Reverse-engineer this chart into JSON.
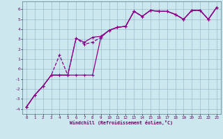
{
  "xlabel": "Windchill (Refroidissement éolien,°C)",
  "bg_color": "#cce8ee",
  "line_color": "#880088",
  "grid_color": "#99bbcc",
  "xlim": [
    -0.5,
    23.5
  ],
  "ylim": [
    -4.5,
    6.8
  ],
  "x_ticks": [
    0,
    1,
    2,
    3,
    4,
    5,
    6,
    7,
    8,
    9,
    10,
    11,
    12,
    13,
    14,
    15,
    16,
    17,
    18,
    19,
    20,
    21,
    22,
    23
  ],
  "y_ticks": [
    -4,
    -3,
    -2,
    -1,
    0,
    1,
    2,
    3,
    4,
    5,
    6
  ],
  "series1_x": [
    0,
    1,
    2,
    3,
    4,
    5,
    6,
    7,
    8,
    9,
    10,
    11,
    12,
    13,
    14,
    15,
    16,
    17,
    18,
    19,
    20,
    21,
    22,
    23
  ],
  "series1_y": [
    -3.8,
    -2.6,
    -1.7,
    -0.6,
    -0.6,
    -0.6,
    -0.6,
    -0.6,
    -0.6,
    3.2,
    3.9,
    4.2,
    4.3,
    5.8,
    5.3,
    5.9,
    5.8,
    5.8,
    5.5,
    5.0,
    5.9,
    5.9,
    5.0,
    6.2
  ],
  "series2_x": [
    0,
    1,
    2,
    3,
    4,
    5,
    6,
    7,
    8,
    9,
    10,
    11,
    12,
    13,
    14,
    15,
    16,
    17,
    18,
    19,
    20,
    21,
    22,
    23
  ],
  "series2_y": [
    -3.8,
    -2.6,
    -1.7,
    -0.6,
    1.4,
    -0.6,
    3.1,
    2.5,
    2.7,
    3.2,
    3.9,
    4.2,
    4.3,
    5.8,
    5.3,
    5.9,
    5.8,
    5.8,
    5.5,
    5.0,
    5.9,
    5.9,
    5.0,
    6.2
  ],
  "series3_x": [
    0,
    1,
    2,
    3,
    4,
    5,
    6,
    7,
    8,
    9,
    10,
    11,
    12,
    13,
    14,
    15,
    16,
    17,
    18,
    19,
    20,
    21,
    22,
    23
  ],
  "series3_y": [
    -3.8,
    -2.6,
    -1.7,
    -0.6,
    -0.6,
    -0.6,
    3.1,
    2.7,
    3.2,
    3.3,
    3.9,
    4.2,
    4.3,
    5.8,
    5.3,
    5.9,
    5.8,
    5.8,
    5.5,
    5.0,
    5.9,
    5.9,
    5.0,
    6.2
  ]
}
